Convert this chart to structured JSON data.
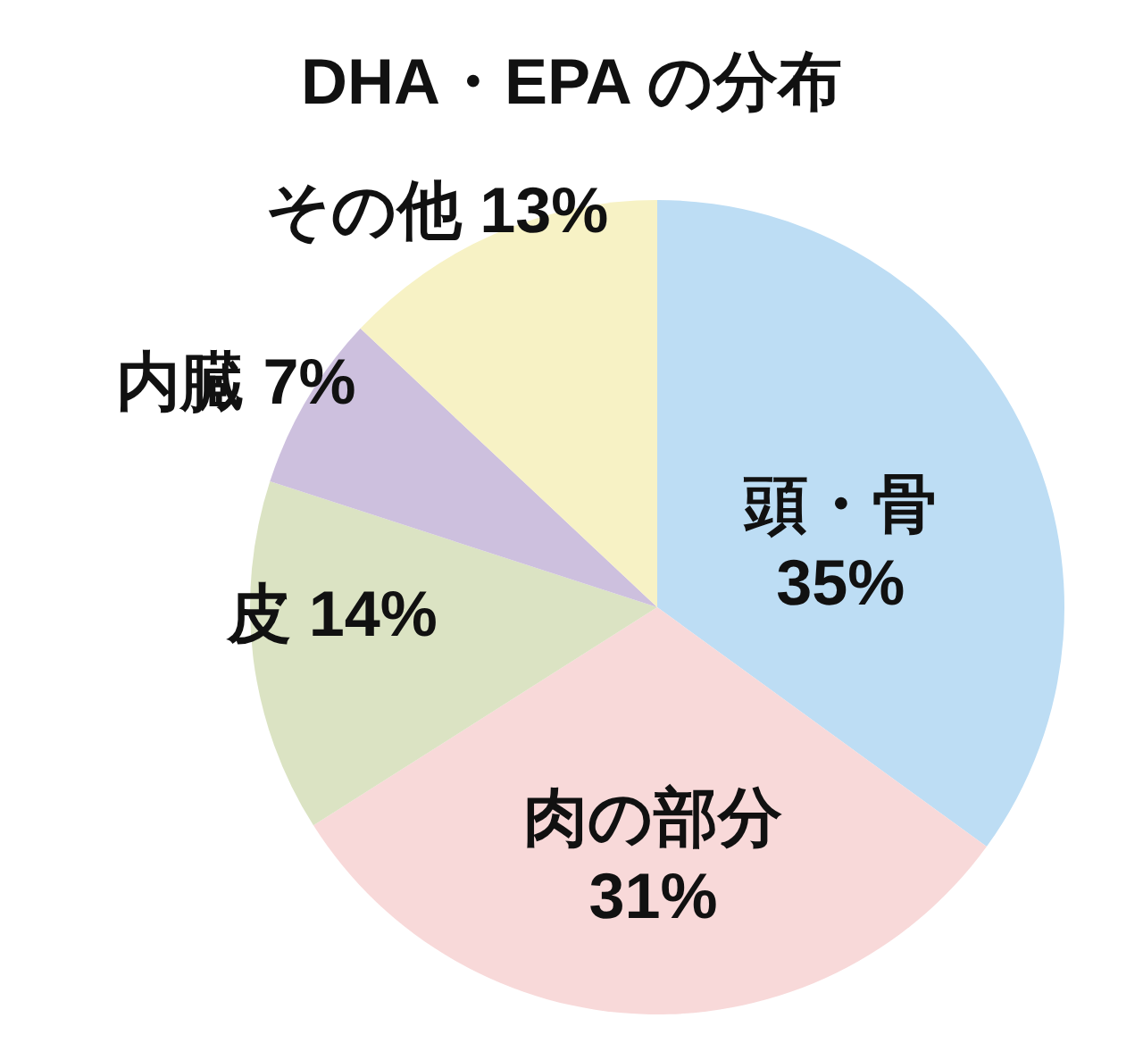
{
  "chart_data": {
    "type": "pie",
    "title": "DHA・EPA の分布",
    "categories": [
      "頭・骨",
      "肉の部分",
      "皮",
      "内臓",
      "その他"
    ],
    "values": [
      35,
      31,
      14,
      7,
      13
    ],
    "value_labels": [
      "35%",
      "31%",
      "14%",
      "7%",
      "13%"
    ],
    "colors": [
      "#bdddf4",
      "#f8d9d9",
      "#dbe3c3",
      "#cdc0de",
      "#f7f2c5"
    ]
  }
}
